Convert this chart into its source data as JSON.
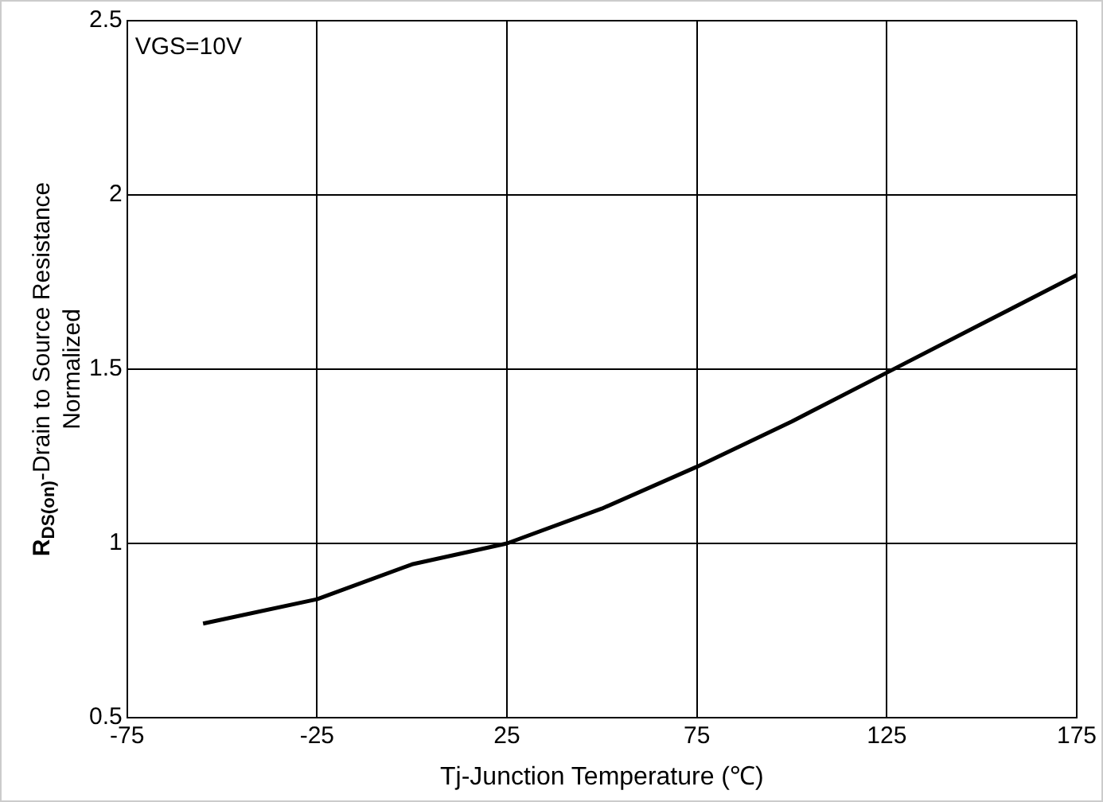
{
  "chart_data": {
    "type": "line",
    "xlabel": "Tj-Junction Temperature (℃)",
    "ylabel": "R$_{DS(on)}$-Drain to Source Resistance\nNormalized",
    "annotations": [
      "VGS=10V"
    ],
    "x": [
      -55,
      -25,
      0,
      25,
      50,
      75,
      100,
      125,
      150,
      175
    ],
    "series": [
      {
        "color": "#000000",
        "values": [
          0.77,
          0.84,
          0.94,
          1.0,
          1.1,
          1.22,
          1.35,
          1.49,
          1.63,
          1.77
        ]
      }
    ],
    "xlim": [
      -75,
      175
    ],
    "xticks": [
      -75,
      -25,
      25,
      75,
      125,
      175
    ],
    "ylim": [
      0.5,
      2.5
    ],
    "yticks": [
      0.5,
      1,
      1.5,
      2,
      2.5
    ],
    "grid": true,
    "legend": false,
    "marker": "none",
    "line_style": "solid"
  }
}
